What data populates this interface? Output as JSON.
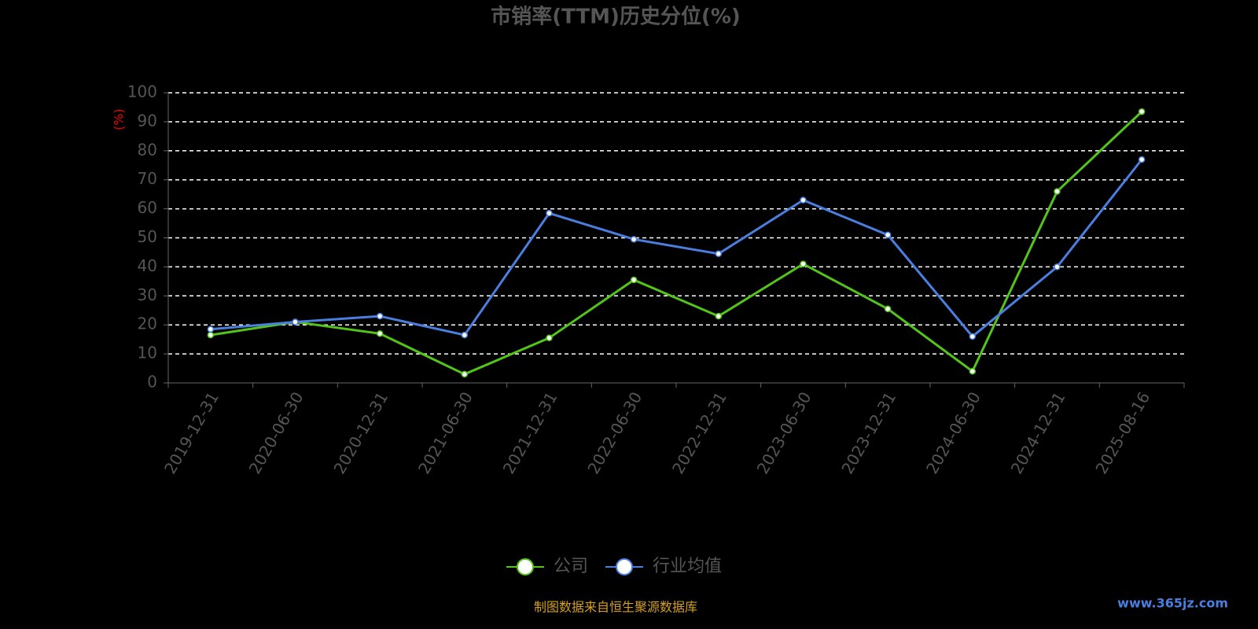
{
  "chart_data": {
    "type": "line",
    "title": "市销率(TTM)历史分位(%)",
    "y_label": "(%)",
    "source": "制图数据来自恒生聚源数据库",
    "watermark": "www.365jz.com",
    "categories": [
      "2019-12-31",
      "2020-06-30",
      "2020-12-31",
      "2021-06-30",
      "2021-12-31",
      "2022-06-30",
      "2022-12-31",
      "2023-06-30",
      "2023-12-31",
      "2024-06-30",
      "2024-12-31",
      "2025-08-16"
    ],
    "series": [
      {
        "name": "公司",
        "color": "#52c41a",
        "values": [
          16.5,
          21,
          17,
          3,
          15.5,
          35.5,
          23,
          41,
          25.5,
          4,
          66,
          93.5
        ]
      },
      {
        "name": "行业均值",
        "color": "#4a7fe0",
        "values": [
          18.5,
          21,
          23,
          16.5,
          58.5,
          49.5,
          44.5,
          63,
          51,
          16,
          40,
          77
        ]
      }
    ],
    "ylim": [
      0,
      100
    ],
    "yticks": [
      0,
      10,
      20,
      30,
      40,
      50,
      60,
      70,
      80,
      90,
      100
    ],
    "grid": true,
    "legend": "bottom"
  }
}
